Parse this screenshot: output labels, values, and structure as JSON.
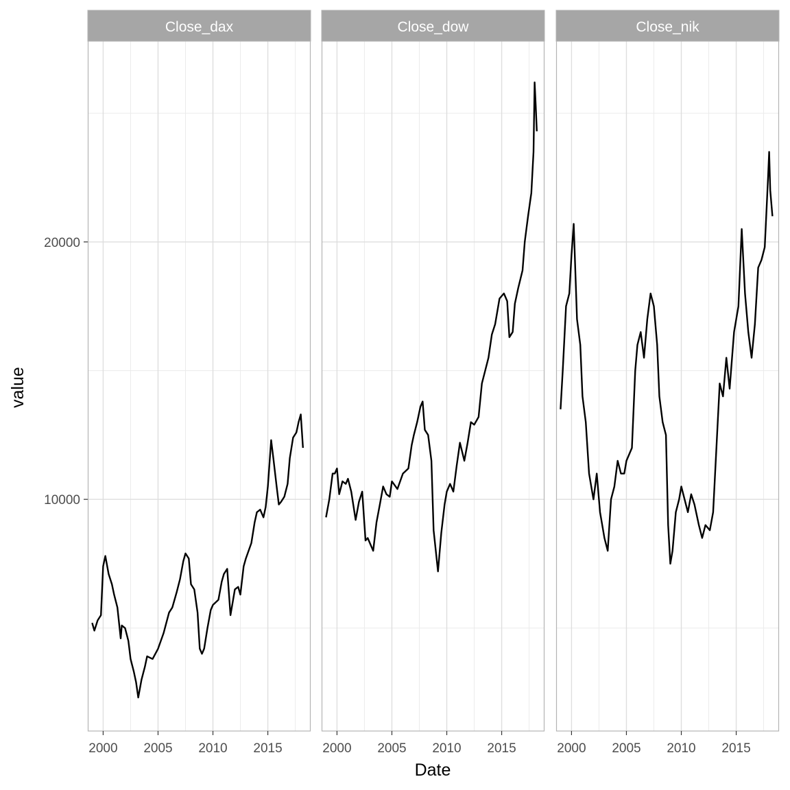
{
  "chart_data": {
    "type": "line",
    "xlabel": "Date",
    "ylabel": "value",
    "xlim": [
      1998.6,
      2018.9
    ],
    "ylim": [
      1000,
      27800
    ],
    "x_ticks": [
      2000,
      2005,
      2010,
      2015
    ],
    "x_tick_labels": [
      "2000",
      "2005",
      "2010",
      "2015"
    ],
    "y_ticks": [
      10000,
      20000
    ],
    "y_tick_labels": [
      "10000",
      "20000"
    ],
    "y_minor_ticks": [
      5000,
      15000,
      25000
    ],
    "grid": true,
    "legend": "none",
    "line_color": "#000000",
    "strip_color": "#a6a6a6",
    "panels": [
      {
        "name": "Close_dax",
        "x": [
          1999.0,
          1999.2,
          1999.5,
          1999.8,
          2000.0,
          2000.2,
          2000.5,
          2000.8,
          2001.0,
          2001.3,
          2001.6,
          2001.7,
          2002.0,
          2002.3,
          2002.5,
          2002.8,
          2003.0,
          2003.2,
          2003.5,
          2003.8,
          2004.0,
          2004.5,
          2005.0,
          2005.5,
          2006.0,
          2006.3,
          2006.7,
          2007.0,
          2007.3,
          2007.5,
          2007.8,
          2008.0,
          2008.3,
          2008.6,
          2008.8,
          2009.0,
          2009.2,
          2009.5,
          2009.8,
          2010.0,
          2010.5,
          2010.8,
          2011.0,
          2011.3,
          2011.6,
          2011.8,
          2012.0,
          2012.3,
          2012.5,
          2012.8,
          2013.0,
          2013.5,
          2013.8,
          2014.0,
          2014.3,
          2014.6,
          2014.8,
          2015.0,
          2015.3,
          2015.5,
          2015.8,
          2016.0,
          2016.2,
          2016.5,
          2016.8,
          2017.0,
          2017.3,
          2017.6,
          2017.8,
          2018.0,
          2018.2
        ],
        "values": [
          5200,
          4900,
          5300,
          5500,
          7400,
          7800,
          7100,
          6700,
          6300,
          5800,
          4600,
          5100,
          5000,
          4500,
          3800,
          3300,
          2900,
          2300,
          3000,
          3500,
          3900,
          3800,
          4200,
          4800,
          5600,
          5800,
          6400,
          6900,
          7600,
          7900,
          7700,
          6700,
          6500,
          5600,
          4200,
          4000,
          4200,
          5000,
          5700,
          5900,
          6100,
          6800,
          7100,
          7300,
          5500,
          6000,
          6500,
          6600,
          6300,
          7400,
          7700,
          8300,
          9100,
          9500,
          9600,
          9300,
          9700,
          10500,
          12300,
          11600,
          10500,
          9800,
          9900,
          10100,
          10600,
          11600,
          12400,
          12600,
          13000,
          13300,
          12000
        ]
      },
      {
        "name": "Close_dow",
        "x": [
          1999.0,
          1999.3,
          1999.6,
          1999.8,
          2000.0,
          2000.2,
          2000.5,
          2000.8,
          2001.0,
          2001.3,
          2001.7,
          2002.0,
          2002.3,
          2002.6,
          2002.8,
          2003.0,
          2003.3,
          2003.6,
          2003.9,
          2004.2,
          2004.5,
          2004.8,
          2005.0,
          2005.5,
          2006.0,
          2006.5,
          2006.8,
          2007.0,
          2007.3,
          2007.6,
          2007.8,
          2008.0,
          2008.3,
          2008.6,
          2008.8,
          2009.0,
          2009.2,
          2009.5,
          2009.8,
          2010.0,
          2010.3,
          2010.6,
          2010.9,
          2011.2,
          2011.6,
          2011.9,
          2012.2,
          2012.5,
          2012.9,
          2013.2,
          2013.5,
          2013.8,
          2014.1,
          2014.4,
          2014.8,
          2015.2,
          2015.5,
          2015.7,
          2016.0,
          2016.2,
          2016.5,
          2016.9,
          2017.1,
          2017.4,
          2017.7,
          2017.9,
          2018.0,
          2018.1,
          2018.2
        ],
        "values": [
          9300,
          10000,
          11000,
          11000,
          11200,
          10200,
          10700,
          10600,
          10800,
          10300,
          9200,
          9900,
          10300,
          8400,
          8500,
          8300,
          8000,
          9100,
          9800,
          10500,
          10200,
          10100,
          10700,
          10400,
          11000,
          11200,
          12100,
          12500,
          13000,
          13600,
          13800,
          12700,
          12500,
          11500,
          8800,
          8000,
          7200,
          8700,
          9800,
          10300,
          10600,
          10300,
          11300,
          12200,
          11500,
          12200,
          13000,
          12900,
          13200,
          14500,
          15000,
          15500,
          16400,
          16800,
          17800,
          18000,
          17700,
          16300,
          16500,
          17600,
          18200,
          18900,
          20000,
          21000,
          21900,
          23500,
          26200,
          25300,
          24300
        ]
      },
      {
        "name": "Close_nik",
        "x": [
          1999.0,
          1999.2,
          1999.5,
          1999.8,
          2000.0,
          2000.2,
          2000.5,
          2000.8,
          2001.0,
          2001.3,
          2001.6,
          2001.8,
          2002.0,
          2002.3,
          2002.6,
          2002.8,
          2003.0,
          2003.3,
          2003.6,
          2003.9,
          2004.2,
          2004.5,
          2004.8,
          2005.0,
          2005.5,
          2005.8,
          2006.0,
          2006.3,
          2006.6,
          2006.9,
          2007.2,
          2007.5,
          2007.8,
          2008.0,
          2008.3,
          2008.6,
          2008.8,
          2009.0,
          2009.2,
          2009.5,
          2009.8,
          2010.0,
          2010.3,
          2010.6,
          2010.9,
          2011.2,
          2011.6,
          2011.9,
          2012.2,
          2012.6,
          2012.9,
          2013.2,
          2013.5,
          2013.8,
          2014.1,
          2014.4,
          2014.8,
          2015.2,
          2015.5,
          2015.8,
          2016.1,
          2016.4,
          2016.7,
          2017.0,
          2017.3,
          2017.6,
          2017.9,
          2018.0,
          2018.1,
          2018.3
        ],
        "values": [
          13500,
          15000,
          17500,
          18000,
          19500,
          20700,
          17000,
          16000,
          14000,
          13000,
          11000,
          10500,
          10000,
          11000,
          9500,
          9000,
          8500,
          8000,
          10000,
          10500,
          11500,
          11000,
          11000,
          11500,
          12000,
          15000,
          16000,
          16500,
          15500,
          17000,
          18000,
          17500,
          16000,
          14000,
          13000,
          12500,
          9000,
          7500,
          8000,
          9500,
          10000,
          10500,
          10000,
          9500,
          10200,
          9800,
          9000,
          8500,
          9000,
          8800,
          9500,
          12000,
          14500,
          14000,
          15500,
          14300,
          16500,
          17500,
          20500,
          18000,
          16500,
          15500,
          16800,
          19000,
          19300,
          19800,
          22500,
          23500,
          22000,
          21000
        ]
      }
    ]
  }
}
